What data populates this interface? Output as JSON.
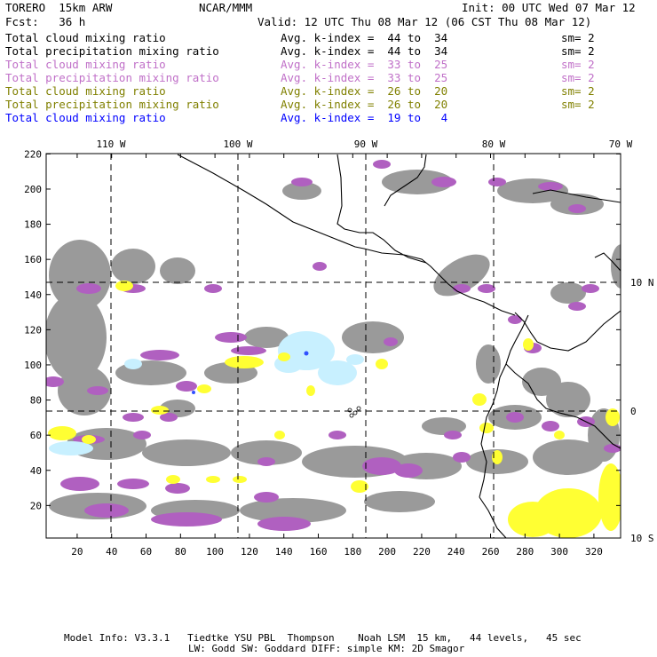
{
  "header": {
    "model_name": "TORERO  15km ARW",
    "center": "NCAR/MMM",
    "init": "Init: 00 UTC Wed 07 Mar 12",
    "fcst": "Fcst:   36 h",
    "valid": "Valid: 12 UTC Thu 08 Mar 12 (06 CST Thu 08 Mar 12)"
  },
  "legend": [
    {
      "field": "Total cloud mixing ratio",
      "kindex": "Avg. k-index =  44 to  34",
      "sm": "sm= 2",
      "color": "#000000"
    },
    {
      "field": "Total precipitation mixing ratio",
      "kindex": "Avg. k-index =  44 to  34",
      "sm": "sm= 2",
      "color": "#000000"
    },
    {
      "field": "Total cloud mixing ratio",
      "kindex": "Avg. k-index =  33 to  25",
      "sm": "sm= 2",
      "color": "#c070c8"
    },
    {
      "field": "Total precipitation mixing ratio",
      "kindex": "Avg. k-index =  33 to  25",
      "sm": "sm= 2",
      "color": "#c070c8"
    },
    {
      "field": "Total cloud mixing ratio",
      "kindex": "Avg. k-index =  26 to  20",
      "sm": "sm= 2",
      "color": "#808000"
    },
    {
      "field": "Total precipitation mixing ratio",
      "kindex": "Avg. k-index =  26 to  20",
      "sm": "sm= 2",
      "color": "#808000"
    },
    {
      "field": "Total cloud mixing ratio",
      "kindex": "Avg. k-index =  19 to   4",
      "sm": "",
      "color": "#0000ff"
    }
  ],
  "map": {
    "lon_labels": [
      "110 W",
      "100 W",
      "90 W",
      "80 W",
      "70 W"
    ],
    "lat_labels": [
      "10 N",
      "0",
      "10 S"
    ],
    "x_ticks": [
      "20",
      "40",
      "60",
      "80",
      "100",
      "120",
      "140",
      "160",
      "180",
      "200",
      "220",
      "240",
      "260",
      "280",
      "300",
      "320"
    ],
    "y_ticks": [
      "220",
      "200",
      "180",
      "160",
      "140",
      "120",
      "100",
      "80",
      "60",
      "40",
      "20"
    ],
    "colors": {
      "grey": "#9a9a9a",
      "purple": "#b060c0",
      "yellow": "#ffff33",
      "lightblue": "#c8f0ff",
      "blue": "#3050ff"
    }
  },
  "footer": {
    "line1": "Model Info: V3.3.1   Tiedtke YSU PBL  Thompson    Noah LSM  15 km,   44 levels,   45 sec",
    "line2": "LW: Godd SW: Goddard DIFF: simple KM: 2D Smagor"
  }
}
